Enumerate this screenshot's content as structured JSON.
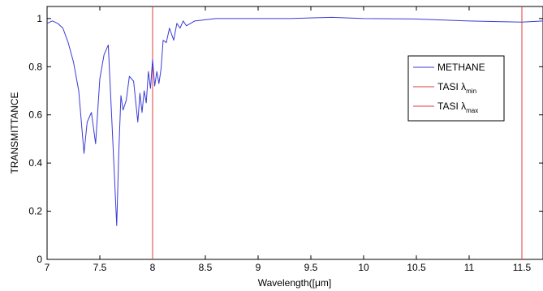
{
  "chart_data": {
    "type": "line",
    "title": "",
    "xlabel": "Wavelength([μm]",
    "ylabel": "TRANSMITTANCE",
    "xlim": [
      7,
      11.7
    ],
    "ylim": [
      0,
      1.05
    ],
    "x_ticks": [
      "7",
      "7.5",
      "8",
      "8.5",
      "9",
      "9.5",
      "10",
      "10.5",
      "11",
      "11.5"
    ],
    "y_ticks": [
      "0",
      "0.2",
      "0.4",
      "0.6",
      "0.8",
      "1"
    ],
    "grid": false,
    "legend_position": "top-right",
    "colors": {
      "methane": "#3a3ad8",
      "tasi_min": "#e23b3b",
      "tasi_max": "#e23b3b"
    },
    "series": [
      {
        "name": "METHANE",
        "color": "#3a3ad8",
        "x": [
          7.0,
          7.05,
          7.1,
          7.15,
          7.2,
          7.25,
          7.3,
          7.35,
          7.38,
          7.42,
          7.46,
          7.5,
          7.54,
          7.58,
          7.62,
          7.66,
          7.68,
          7.7,
          7.72,
          7.75,
          7.78,
          7.82,
          7.86,
          7.88,
          7.9,
          7.92,
          7.94,
          7.96,
          7.98,
          8.0,
          8.02,
          8.04,
          8.06,
          8.08,
          8.1,
          8.13,
          8.16,
          8.2,
          8.23,
          8.26,
          8.29,
          8.32,
          8.36,
          8.4,
          8.5,
          8.6,
          8.8,
          9.0,
          9.3,
          9.7,
          10.0,
          10.5,
          11.0,
          11.5,
          11.7
        ],
        "y": [
          0.98,
          0.99,
          0.98,
          0.96,
          0.9,
          0.82,
          0.7,
          0.44,
          0.57,
          0.61,
          0.48,
          0.75,
          0.85,
          0.89,
          0.52,
          0.14,
          0.45,
          0.68,
          0.62,
          0.66,
          0.76,
          0.74,
          0.57,
          0.69,
          0.61,
          0.7,
          0.65,
          0.78,
          0.71,
          0.83,
          0.72,
          0.78,
          0.73,
          0.79,
          0.91,
          0.9,
          0.96,
          0.91,
          0.98,
          0.96,
          0.99,
          0.97,
          0.98,
          0.99,
          0.995,
          1.0,
          1.0,
          1.0,
          1.0,
          1.005,
          1.0,
          0.998,
          0.99,
          0.985,
          0.99
        ]
      }
    ],
    "vertical_lines": [
      {
        "name": "TASI λmin",
        "x": 8.0,
        "color": "#e23b3b"
      },
      {
        "name": "TASI λmax",
        "x": 11.5,
        "color": "#e23b3b"
      }
    ],
    "legend": [
      {
        "label": "METHANE",
        "sub": "",
        "color": "#3a3ad8"
      },
      {
        "label": "TASI λ",
        "sub": "min",
        "color": "#e23b3b"
      },
      {
        "label": "TASI λ",
        "sub": "max",
        "color": "#e23b3b"
      }
    ]
  }
}
